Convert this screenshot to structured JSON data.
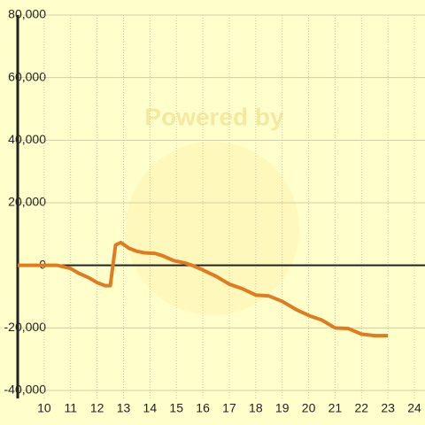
{
  "chart_data": {
    "type": "line",
    "watermark": "Powered by",
    "x": [
      9,
      10.5,
      11,
      11.3,
      11.7,
      12,
      12.3,
      12.5,
      12.7,
      12.9,
      13.2,
      13.5,
      13.8,
      14.2,
      14.5,
      14.9,
      15.3,
      15.6,
      16,
      16.5,
      17,
      17.5,
      18,
      18.5,
      19,
      19.5,
      20,
      20.5,
      21,
      21.5,
      22,
      22.5,
      23
    ],
    "values": [
      0,
      0,
      -1000,
      -2500,
      -4000,
      -5500,
      -6500,
      -6500,
      6500,
      7300,
      5500,
      4500,
      4000,
      3800,
      3000,
      1500,
      800,
      0,
      -1500,
      -3500,
      -6000,
      -7500,
      -9500,
      -9800,
      -11500,
      -14000,
      -16000,
      -17500,
      -20000,
      -20200,
      -22000,
      -22500,
      -22500
    ],
    "color": "#e07b20",
    "xlim": [
      9,
      24.4
    ],
    "ylim": [
      -40000,
      80000
    ],
    "xticks": [
      10,
      11,
      12,
      13,
      14,
      15,
      16,
      17,
      18,
      19,
      20,
      21,
      22,
      23,
      24
    ],
    "yticks": [
      {
        "value": -40000,
        "label": "-40,000"
      },
      {
        "value": -20000,
        "label": "-20,000"
      },
      0,
      {
        "value": 20000,
        "label": "20,000"
      },
      {
        "value": 40000,
        "label": "40,000"
      },
      {
        "value": 60000,
        "label": "60,000"
      },
      {
        "value": 80000,
        "label": "80,000"
      }
    ],
    "grid": true
  }
}
